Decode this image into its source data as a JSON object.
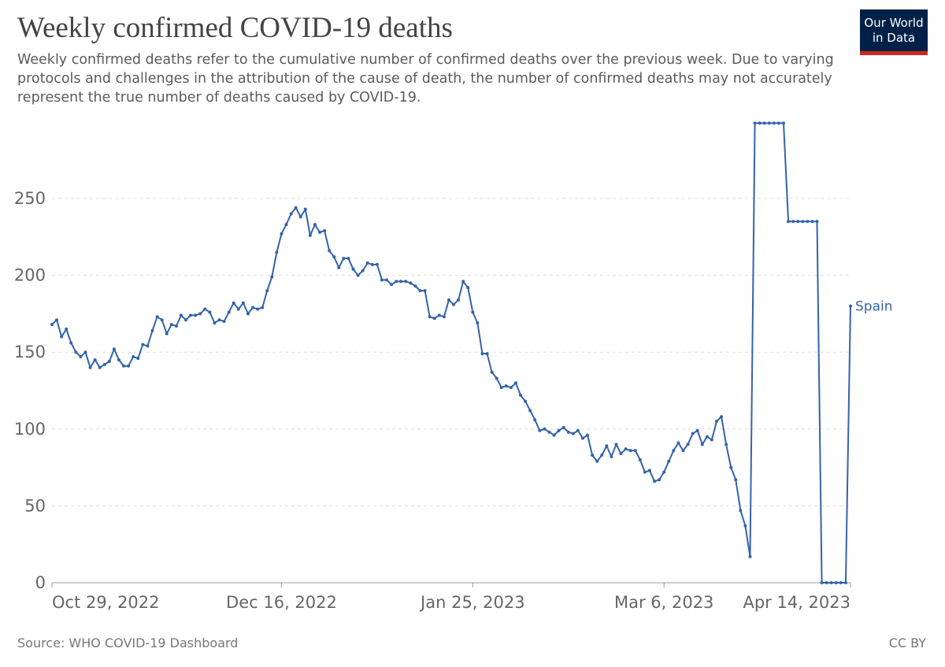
{
  "chart_data": {
    "type": "line",
    "title": "Weekly confirmed COVID-19 deaths",
    "subtitle": "Weekly confirmed deaths refer to the cumulative number of confirmed deaths over the previous week. Due to varying protocols and challenges in the attribution of the cause of death, the number of confirmed deaths may not accurately represent the true number of deaths caused by COVID-19.",
    "source": "Source: WHO COVID-19 Dashboard",
    "license": "CC BY",
    "logo": [
      "Our World",
      "in Data"
    ],
    "x": [
      "2022-10-29",
      "2022-10-30",
      "2022-10-31",
      "2022-11-01",
      "2022-11-02",
      "2022-11-03",
      "2022-11-04",
      "2022-11-05",
      "2022-11-06",
      "2022-11-07",
      "2022-11-08",
      "2022-11-09",
      "2022-11-10",
      "2022-11-11",
      "2022-11-12",
      "2022-11-13",
      "2022-11-14",
      "2022-11-15",
      "2022-11-16",
      "2022-11-17",
      "2022-11-18",
      "2022-11-19",
      "2022-11-20",
      "2022-11-21",
      "2022-11-22",
      "2022-11-23",
      "2022-11-24",
      "2022-11-25",
      "2022-11-26",
      "2022-11-27",
      "2022-11-28",
      "2022-11-29",
      "2022-11-30",
      "2022-12-01",
      "2022-12-02",
      "2022-12-03",
      "2022-12-04",
      "2022-12-05",
      "2022-12-06",
      "2022-12-07",
      "2022-12-08",
      "2022-12-09",
      "2022-12-10",
      "2022-12-11",
      "2022-12-12",
      "2022-12-13",
      "2022-12-14",
      "2022-12-15",
      "2022-12-16",
      "2022-12-17",
      "2022-12-18",
      "2022-12-19",
      "2022-12-20",
      "2022-12-21",
      "2022-12-22",
      "2022-12-23",
      "2022-12-24",
      "2022-12-25",
      "2022-12-26",
      "2022-12-27",
      "2022-12-28",
      "2022-12-29",
      "2022-12-30",
      "2022-12-31",
      "2023-01-01",
      "2023-01-02",
      "2023-01-03",
      "2023-01-04",
      "2023-01-05",
      "2023-01-06",
      "2023-01-07",
      "2023-01-08",
      "2023-01-09",
      "2023-01-10",
      "2023-01-11",
      "2023-01-12",
      "2023-01-13",
      "2023-01-14",
      "2023-01-15",
      "2023-01-16",
      "2023-01-17",
      "2023-01-18",
      "2023-01-19",
      "2023-01-20",
      "2023-01-21",
      "2023-01-22",
      "2023-01-23",
      "2023-01-24",
      "2023-01-25",
      "2023-01-26",
      "2023-01-27",
      "2023-01-28",
      "2023-01-29",
      "2023-01-30",
      "2023-01-31",
      "2023-02-01",
      "2023-02-02",
      "2023-02-03",
      "2023-02-04",
      "2023-02-05",
      "2023-02-06",
      "2023-02-07",
      "2023-02-08",
      "2023-02-09",
      "2023-02-10",
      "2023-02-11",
      "2023-02-12",
      "2023-02-13",
      "2023-02-14",
      "2023-02-15",
      "2023-02-16",
      "2023-02-17",
      "2023-02-18",
      "2023-02-19",
      "2023-02-20",
      "2023-02-21",
      "2023-02-22",
      "2023-02-23",
      "2023-02-24",
      "2023-02-25",
      "2023-02-26",
      "2023-02-27",
      "2023-02-28",
      "2023-03-01",
      "2023-03-02",
      "2023-03-03",
      "2023-03-04",
      "2023-03-05",
      "2023-03-06",
      "2023-03-07",
      "2023-03-08",
      "2023-03-09",
      "2023-03-10",
      "2023-03-11",
      "2023-03-12",
      "2023-03-13",
      "2023-03-14",
      "2023-03-15",
      "2023-03-16",
      "2023-03-17",
      "2023-03-18",
      "2023-03-19",
      "2023-03-20",
      "2023-03-21",
      "2023-03-22",
      "2023-03-23",
      "2023-03-24",
      "2023-03-25",
      "2023-03-26",
      "2023-03-27",
      "2023-03-28",
      "2023-03-29",
      "2023-03-30",
      "2023-03-31",
      "2023-04-01",
      "2023-04-02",
      "2023-04-03",
      "2023-04-04",
      "2023-04-05",
      "2023-04-06",
      "2023-04-07",
      "2023-04-08",
      "2023-04-09",
      "2023-04-10",
      "2023-04-11",
      "2023-04-12",
      "2023-04-13",
      "2023-04-14"
    ],
    "series": [
      {
        "name": "Spain",
        "color": "#3563a9",
        "values": [
          168,
          171,
          160,
          165,
          156,
          150,
          147,
          150,
          140,
          145,
          140,
          142,
          144,
          152,
          145,
          141,
          141,
          147,
          146,
          155,
          154,
          164,
          173,
          171,
          162,
          168,
          167,
          174,
          171,
          174,
          174,
          175,
          178,
          176,
          169,
          171,
          170,
          176,
          182,
          178,
          182,
          175,
          179,
          178,
          179,
          190,
          199,
          215,
          227,
          233,
          240,
          244,
          238,
          243,
          226,
          233,
          228,
          229,
          216,
          212,
          205,
          211,
          211,
          204,
          200,
          203,
          208,
          207,
          207,
          197,
          197,
          194,
          196,
          196,
          196,
          195,
          193,
          190,
          190,
          173,
          172,
          174,
          173,
          184,
          181,
          184,
          196,
          192,
          176,
          169,
          149,
          149,
          137,
          133,
          127,
          128,
          127,
          130,
          122,
          118,
          112,
          106,
          99,
          100,
          98,
          96,
          99,
          101,
          98,
          97,
          99,
          94,
          96,
          83,
          79,
          83,
          89,
          82,
          90,
          84,
          87,
          86,
          86,
          80,
          72,
          73,
          66,
          67,
          72,
          79,
          86,
          91,
          86,
          90,
          97,
          99,
          90,
          95,
          93,
          105,
          108,
          90,
          75,
          67,
          47,
          37,
          17,
          299,
          299,
          299,
          299,
          299,
          299,
          299,
          235,
          235,
          235,
          235,
          235,
          235,
          235,
          0,
          0,
          0,
          0,
          0,
          0,
          180
        ]
      }
    ],
    "xlim": [
      "2022-10-29",
      "2023-04-14"
    ],
    "xticks": [
      {
        "value": "2022-10-29",
        "label": "Oct 29, 2022"
      },
      {
        "value": "2022-12-16",
        "label": "Dec 16, 2022"
      },
      {
        "value": "2023-01-25",
        "label": "Jan 25, 2023"
      },
      {
        "value": "2023-03-06",
        "label": "Mar 6, 2023"
      },
      {
        "value": "2023-04-14",
        "label": "Apr 14, 2023"
      }
    ],
    "ylim": [
      0,
      300
    ],
    "yticks": [
      0,
      50,
      100,
      150,
      200,
      250
    ],
    "grid": true
  }
}
